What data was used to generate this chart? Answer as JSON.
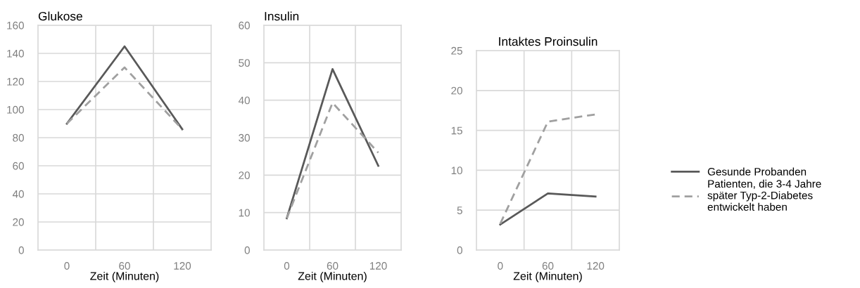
{
  "chart_data": [
    {
      "type": "line",
      "title": "Glukose",
      "xlabel": "Zeit (Minuten)",
      "categories": [
        "0",
        "60",
        "120"
      ],
      "ylim": [
        0,
        160
      ],
      "yticks": [
        0,
        20,
        40,
        60,
        80,
        100,
        120,
        140,
        160
      ],
      "grid": true,
      "marker": "none",
      "series": [
        {
          "color": "#595959",
          "line_style": "solid",
          "values": [
            90,
            145,
            86
          ]
        },
        {
          "color": "#a0a0a0",
          "line_style": "dashed",
          "values": [
            90,
            130,
            86
          ]
        }
      ]
    },
    {
      "type": "line",
      "title": "Insulin",
      "xlabel": "Zeit (Minuten)",
      "categories": [
        "0",
        "60",
        "120"
      ],
      "ylim": [
        0,
        60
      ],
      "yticks": [
        0,
        10,
        20,
        30,
        40,
        50,
        60
      ],
      "grid": true,
      "marker": "none",
      "series": [
        {
          "color": "#595959",
          "line_style": "solid",
          "values": [
            8.5,
            48.3,
            22.5
          ]
        },
        {
          "color": "#a0a0a0",
          "line_style": "dashed",
          "values": [
            8.5,
            39.3,
            26
          ]
        }
      ]
    },
    {
      "type": "line",
      "title": "Intaktes Proinsulin",
      "xlabel": "Zeit (Minuten)",
      "categories": [
        "0",
        "60",
        "120"
      ],
      "ylim": [
        0,
        25
      ],
      "yticks": [
        0,
        5,
        10,
        15,
        20,
        25
      ],
      "grid": true,
      "marker": "none",
      "legend": "right",
      "series": [
        {
          "name": "Gesunde Probanden",
          "color": "#595959",
          "line_style": "solid",
          "values": [
            3.2,
            7.1,
            6.7
          ]
        },
        {
          "name": "Patienten, die 3-4 Jahre\nspäter Typ-2-Diabetes\nentwickelt haben",
          "color": "#a0a0a0",
          "line_style": "dashed",
          "values": [
            3.3,
            16.1,
            17.0
          ]
        }
      ]
    }
  ]
}
